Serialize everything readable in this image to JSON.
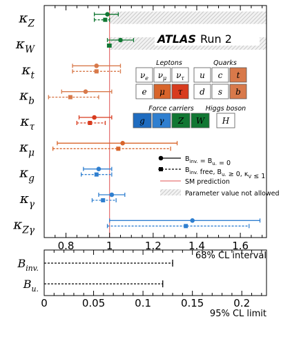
{
  "chart_data": [
    {
      "type": "scatter",
      "xlim": [
        0.7,
        1.72
      ],
      "x_ticks": [
        "0.8",
        "1",
        "1.2",
        "1.4",
        "1.6"
      ],
      "x_tick_values": [
        0.8,
        1.0,
        1.2,
        1.4,
        1.6
      ],
      "xlabel": "68% CL interval",
      "reference_line": {
        "x": 1.0,
        "label": "SM prediction",
        "color": "#e05050"
      },
      "parameters": [
        {
          "label": "κZ"
        },
        {
          "label": "κW"
        },
        {
          "label": "κt"
        },
        {
          "label": "κb"
        },
        {
          "label": "κτ"
        },
        {
          "label": "κμ"
        },
        {
          "label": "κg"
        },
        {
          "label": "κγ"
        },
        {
          "label": "κZγ"
        }
      ],
      "series": [
        {
          "name": "B_inv. = B_u. = 0",
          "marker": "circle",
          "line": "solid",
          "points": [
            {
              "param": "κZ",
              "value": 0.99,
              "low": 0.93,
              "high": 1.04,
              "color": "#117733"
            },
            {
              "param": "κW",
              "value": 1.05,
              "low": 0.99,
              "high": 1.11,
              "color": "#117733"
            },
            {
              "param": "κt",
              "value": 0.94,
              "low": 0.83,
              "high": 1.05,
              "color": "#d8794a"
            },
            {
              "param": "κb",
              "value": 0.89,
              "low": 0.78,
              "high": 1.01,
              "color": "#d8794a"
            },
            {
              "param": "κτ",
              "value": 0.93,
              "low": 0.86,
              "high": 1.01,
              "color": "#d83b1e"
            },
            {
              "param": "κμ",
              "value": 1.06,
              "low": 0.76,
              "high": 1.31,
              "color": "#d8642a"
            },
            {
              "param": "κg",
              "value": 0.95,
              "low": 0.88,
              "high": 1.01,
              "color": "#2f7fd0"
            },
            {
              "param": "κγ",
              "value": 1.01,
              "low": 0.95,
              "high": 1.07,
              "color": "#2f7fd0"
            },
            {
              "param": "κZγ",
              "value": 1.38,
              "low": 1.0,
              "high": 1.69,
              "color": "#2f7fd0"
            }
          ]
        },
        {
          "name": "B_inv. free, B_u. ≥ 0, κV ≤ 1",
          "marker": "square",
          "line": "dashed",
          "points": [
            {
              "param": "κZ",
              "value": 0.98,
              "low": 0.93,
              "high": 1.0,
              "color": "#117733"
            },
            {
              "param": "κW",
              "value": 1.0,
              "low": 0.99,
              "high": 1.0,
              "color": "#117733"
            },
            {
              "param": "κt",
              "value": 0.94,
              "low": 0.83,
              "high": 1.05,
              "color": "#d8794a"
            },
            {
              "param": "κb",
              "value": 0.82,
              "low": 0.72,
              "high": 0.95,
              "color": "#d8794a"
            },
            {
              "param": "κτ",
              "value": 0.91,
              "low": 0.85,
              "high": 0.98,
              "color": "#d83b1e"
            },
            {
              "param": "κμ",
              "value": 1.04,
              "low": 0.74,
              "high": 1.28,
              "color": "#d8642a"
            },
            {
              "param": "κg",
              "value": 0.94,
              "low": 0.87,
              "high": 1.01,
              "color": "#2f7fd0"
            },
            {
              "param": "κγ",
              "value": 0.97,
              "low": 0.92,
              "high": 1.03,
              "color": "#2f7fd0"
            },
            {
              "param": "κZγ",
              "value": 1.35,
              "low": 0.99,
              "high": 1.64,
              "color": "#2f7fd0"
            }
          ]
        }
      ],
      "legend": {
        "placement": "lower-right",
        "entries": [
          {
            "text": "B_inv. = B_u. = 0"
          },
          {
            "text": "B_inv. free, B_u. ≥ 0, κ_V ≤ 1"
          },
          {
            "text": "SM prediction"
          },
          {
            "text": "Parameter value not allowed"
          }
        ]
      },
      "forbidden_region": {
        "params": [
          "κZ",
          "κW"
        ],
        "x_from": 1.0,
        "pattern": "hatched"
      }
    },
    {
      "type": "bar",
      "orientation": "horizontal",
      "style": "dashed upper-limit line",
      "categories": [
        "B_inv.",
        "B_u."
      ],
      "values": [
        0.13,
        0.12
      ],
      "xlim": [
        0,
        0.225
      ],
      "x_ticks": [
        "0",
        "0.05",
        "0.1",
        "0.15",
        "0.2"
      ],
      "x_tick_values": [
        0,
        0.05,
        0.1,
        0.15,
        0.2
      ],
      "xlabel": "95% CL limit"
    }
  ],
  "atlas_label": {
    "brand": "ATLAS",
    "run": "Run 2"
  },
  "fermion_table": {
    "leptons_header": "Leptons",
    "quarks_header": "Quarks",
    "rows": [
      [
        {
          "text": "νe",
          "fill": "#ffffff",
          "text_color": "#000000"
        },
        {
          "text": "νμ",
          "fill": "#ffffff",
          "text_color": "#000000"
        },
        {
          "text": "ντ",
          "fill": "#ffffff",
          "text_color": "#000000"
        },
        {
          "text": "u",
          "fill": "#ffffff",
          "text_color": "#000000"
        },
        {
          "text": "c",
          "fill": "#ffffff",
          "text_color": "#000000"
        },
        {
          "text": "t",
          "fill": "#d8794a",
          "text_color": "#ffffff"
        }
      ],
      [
        {
          "text": "e",
          "fill": "#ffffff",
          "text_color": "#000000"
        },
        {
          "text": "μ",
          "fill": "#d8642a",
          "text_color": "#ffffff"
        },
        {
          "text": "τ",
          "fill": "#d83b1e",
          "text_color": "#ffffff"
        },
        {
          "text": "d",
          "fill": "#ffffff",
          "text_color": "#000000"
        },
        {
          "text": "s",
          "fill": "#ffffff",
          "text_color": "#000000"
        },
        {
          "text": "b",
          "fill": "#d8794a",
          "text_color": "#ffffff"
        }
      ]
    ]
  },
  "boson_table": {
    "force_header": "Force carriers",
    "higgs_header": "Higgs boson",
    "cells": [
      {
        "text": "g",
        "fill": "#1f6cc0",
        "text_color": "#ffffff"
      },
      {
        "text": "γ",
        "fill": "#2f7fd0",
        "text_color": "#ffffff"
      },
      {
        "text": "Z",
        "fill": "#117733",
        "text_color": "#ffffff"
      },
      {
        "text": "W",
        "fill": "#117733",
        "text_color": "#ffffff"
      },
      {
        "text": "H",
        "fill": "#ffffff",
        "text_color": "#000000"
      }
    ]
  }
}
